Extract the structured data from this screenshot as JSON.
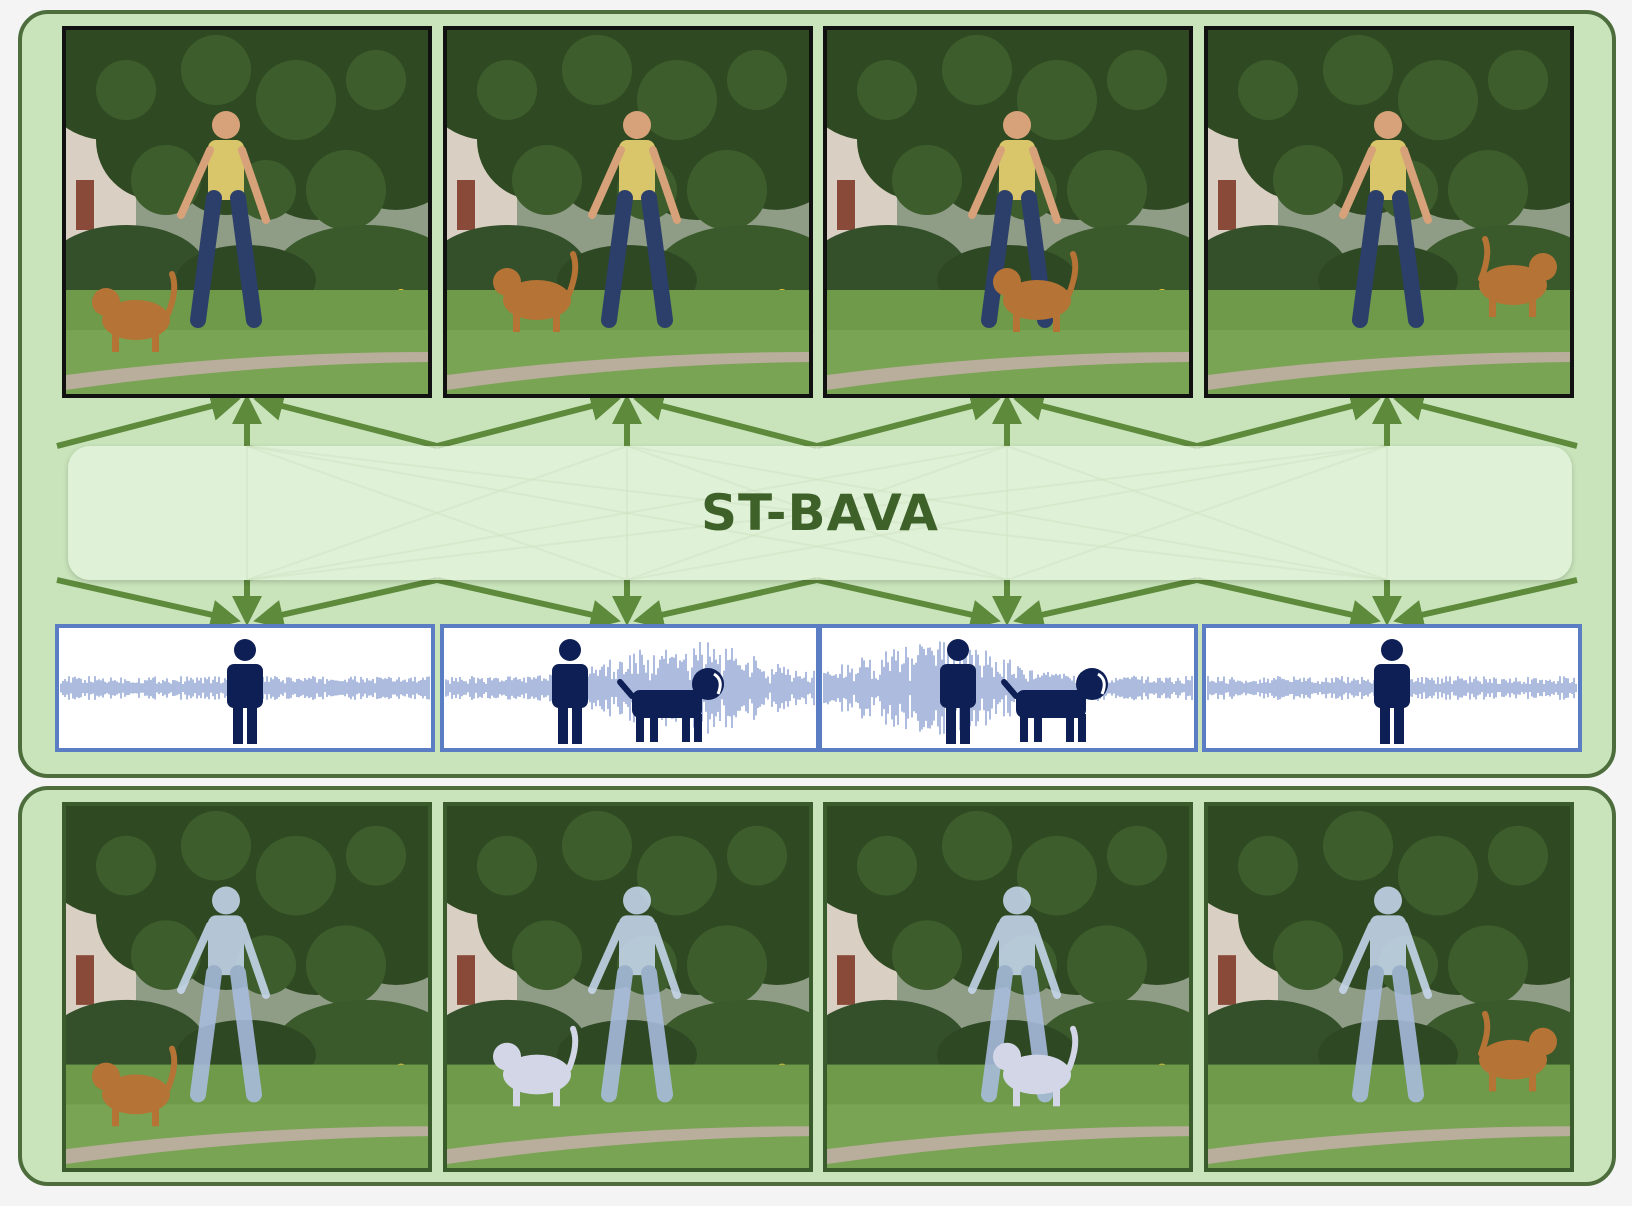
{
  "module": {
    "label": "ST-BAVA"
  },
  "colors": {
    "panel_fill": "#c9e4bb",
    "panel_border": "#4d6e3c",
    "arrow": "#5e8a3c",
    "waveform": "#8aa0d0",
    "audio_border": "#5b7dc4",
    "icon": "#0d1f55",
    "mask": "#c7d8ee"
  },
  "frames": [
    {
      "sources": [
        "person-icon"
      ]
    },
    {
      "sources": [
        "person-icon",
        "dog-icon"
      ]
    },
    {
      "sources": [
        "person-icon",
        "dog-icon"
      ]
    },
    {
      "sources": [
        "person-icon"
      ]
    }
  ]
}
